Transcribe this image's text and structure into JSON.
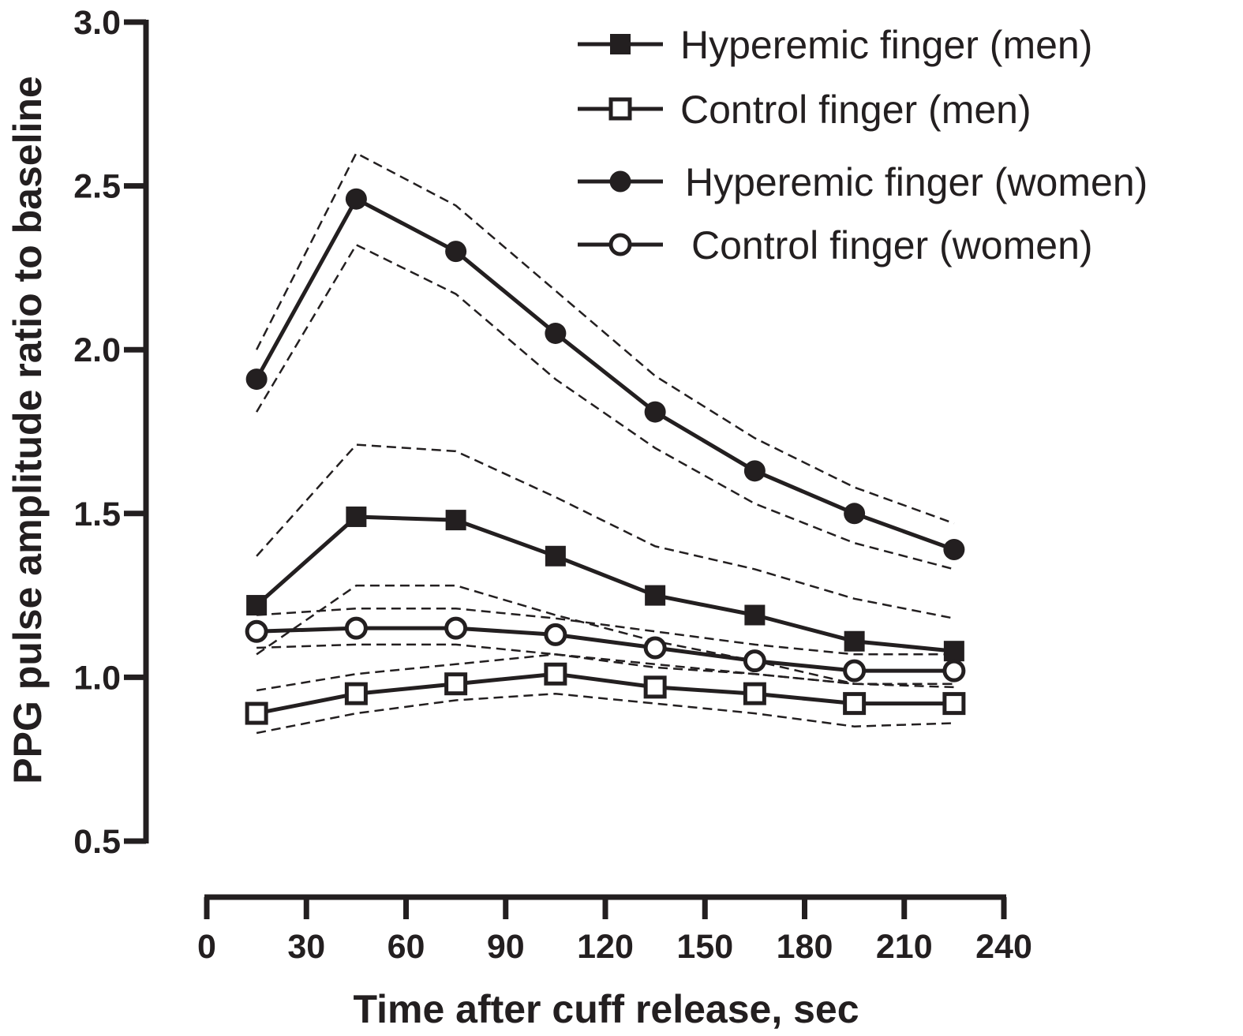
{
  "chart_data": {
    "type": "line",
    "xlabel": "Time after cuff release, sec",
    "ylabel": "PPG pulse amplitude ratio to baseline",
    "xlim": [
      0,
      240
    ],
    "ylim": [
      0.5,
      3.0
    ],
    "xticks": [
      "0",
      "30",
      "60",
      "90",
      "120",
      "150",
      "180",
      "210",
      "240"
    ],
    "yticks": [
      "0.5",
      "1.0",
      "1.5",
      "2.0",
      "2.5",
      "3.0"
    ],
    "x": [
      15,
      45,
      75,
      105,
      135,
      165,
      195,
      225
    ],
    "grid": false,
    "legend_position": "top-right",
    "series": [
      {
        "name": "Hyperemic finger (men)",
        "marker": "filled-square",
        "values": [
          1.22,
          1.49,
          1.48,
          1.37,
          1.25,
          1.19,
          1.11,
          1.08
        ],
        "ci_upper": [
          1.37,
          1.71,
          1.69,
          1.55,
          1.4,
          1.33,
          1.24,
          1.18
        ],
        "ci_lower": [
          1.07,
          1.28,
          1.28,
          1.19,
          1.11,
          1.05,
          0.98,
          0.98
        ]
      },
      {
        "name": "Control finger (men)",
        "marker": "open-square",
        "values": [
          0.89,
          0.95,
          0.98,
          1.01,
          0.97,
          0.95,
          0.92,
          0.92
        ],
        "ci_upper": [
          0.96,
          1.01,
          1.04,
          1.07,
          1.03,
          1.01,
          0.98,
          0.98
        ],
        "ci_lower": [
          0.83,
          0.89,
          0.93,
          0.95,
          0.92,
          0.89,
          0.85,
          0.86
        ]
      },
      {
        "name": "Hyperemic finger (women)",
        "marker": "filled-circle",
        "values": [
          1.91,
          2.46,
          2.3,
          2.05,
          1.81,
          1.63,
          1.5,
          1.39
        ],
        "ci_upper": [
          2.0,
          2.6,
          2.44,
          2.18,
          1.92,
          1.73,
          1.58,
          1.47
        ],
        "ci_lower": [
          1.81,
          2.32,
          2.17,
          1.91,
          1.7,
          1.53,
          1.41,
          1.33
        ]
      },
      {
        "name": "Control finger (women)",
        "marker": "open-circle",
        "values": [
          1.14,
          1.15,
          1.15,
          1.13,
          1.09,
          1.05,
          1.02,
          1.02
        ],
        "ci_upper": [
          1.19,
          1.21,
          1.21,
          1.18,
          1.14,
          1.1,
          1.07,
          1.07
        ],
        "ci_lower": [
          1.09,
          1.1,
          1.1,
          1.07,
          1.04,
          1.01,
          0.98,
          0.97
        ]
      }
    ],
    "colors": {
      "line": "#231f20",
      "background": "#ffffff"
    }
  }
}
